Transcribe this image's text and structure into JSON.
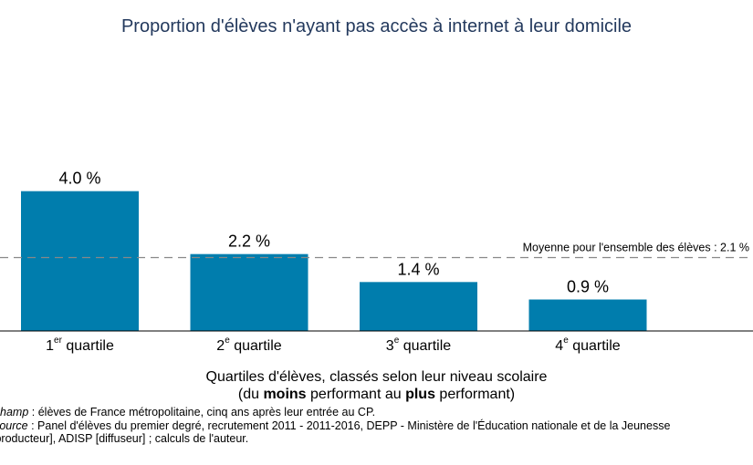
{
  "chart_data": {
    "type": "bar",
    "title": "Proportion d'élèves n'ayant pas accès à internet à leur domicile",
    "categories": [
      {
        "num": "1",
        "sup": "er",
        "word": " quartile"
      },
      {
        "num": "2",
        "sup": "e",
        "word": " quartile"
      },
      {
        "num": "3",
        "sup": "e",
        "word": " quartile"
      },
      {
        "num": "4",
        "sup": "e",
        "word": " quartile"
      }
    ],
    "values": [
      4.0,
      2.2,
      1.4,
      0.9
    ],
    "data_labels": [
      "4.0 %",
      "2.2 %",
      "1.4 %",
      "0.9 %"
    ],
    "bar_color": "#007dad",
    "ylim": [
      0,
      6
    ],
    "reference_line": {
      "value": 2.1,
      "label": "Moyenne pour l'ensemble des élèves : 2.1 %",
      "color": "#888888"
    },
    "xlabel": {
      "line1": "Quartiles d'élèves, classés selon leur niveau scolaire",
      "line2_pre": "(du ",
      "line2_b1": "moins",
      "line2_mid": " performant au ",
      "line2_b2": "plus",
      "line2_post": " performant)"
    }
  },
  "notes": {
    "champ_label": "Champ",
    "champ_text": " : élèves de France métropolitaine, cinq ans après leur entrée au CP.",
    "source_label": "Source",
    "source_text": " : Panel d'élèves du premier degré, recrutement 2011 - 2011-2016, DEPP - Ministère de l'Éducation nationale et de la Jeunesse",
    "source_line2": "[producteur], ADISP [diffuseur] ; calculs de l'auteur."
  }
}
